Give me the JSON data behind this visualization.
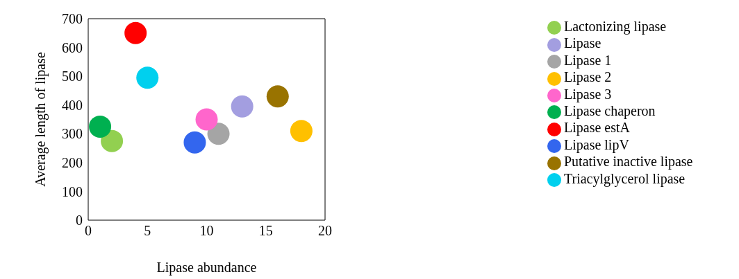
{
  "chart_data": {
    "type": "scatter",
    "xlabel": "Lipase abundance",
    "ylabel": "Average length of lipase",
    "xlim": [
      0,
      20
    ],
    "xticks": [
      0,
      5,
      10,
      15,
      20
    ],
    "ylim": [
      0,
      700
    ],
    "yticks": [
      0,
      100,
      200,
      300,
      400,
      500,
      600,
      700
    ],
    "grid": false,
    "legend": "right",
    "marker": "circle",
    "series": [
      {
        "name": "Lipase lipV",
        "color": "#3366ee",
        "x": [
          9
        ],
        "values": [
          270
        ]
      },
      {
        "name": "Lactonizing lipase",
        "color": "#92d050",
        "x": [
          2
        ],
        "values": [
          275
        ]
      },
      {
        "name": "Lipase 1",
        "color": "#a5a5a5",
        "x": [
          11
        ],
        "values": [
          300
        ]
      },
      {
        "name": "Lipase 2",
        "color": "#ffc000",
        "x": [
          18
        ],
        "values": [
          310
        ]
      },
      {
        "name": "Lipase chaperon",
        "color": "#00b050",
        "x": [
          1
        ],
        "values": [
          325
        ]
      },
      {
        "name": "Lipase 3",
        "color": "#ff66cc",
        "x": [
          10
        ],
        "values": [
          350
        ]
      },
      {
        "name": "Lipase",
        "color": "#a39ee0",
        "x": [
          13
        ],
        "values": [
          395
        ]
      },
      {
        "name": "Putative inactive lipase",
        "color": "#997300",
        "x": [
          16
        ],
        "values": [
          430
        ]
      },
      {
        "name": "Triacylglycerol lipase",
        "color": "#00d0ee",
        "x": [
          5
        ],
        "values": [
          495
        ]
      },
      {
        "name": "Lipase estA",
        "color": "#ff0000",
        "x": [
          4
        ],
        "values": [
          650
        ]
      }
    ]
  }
}
